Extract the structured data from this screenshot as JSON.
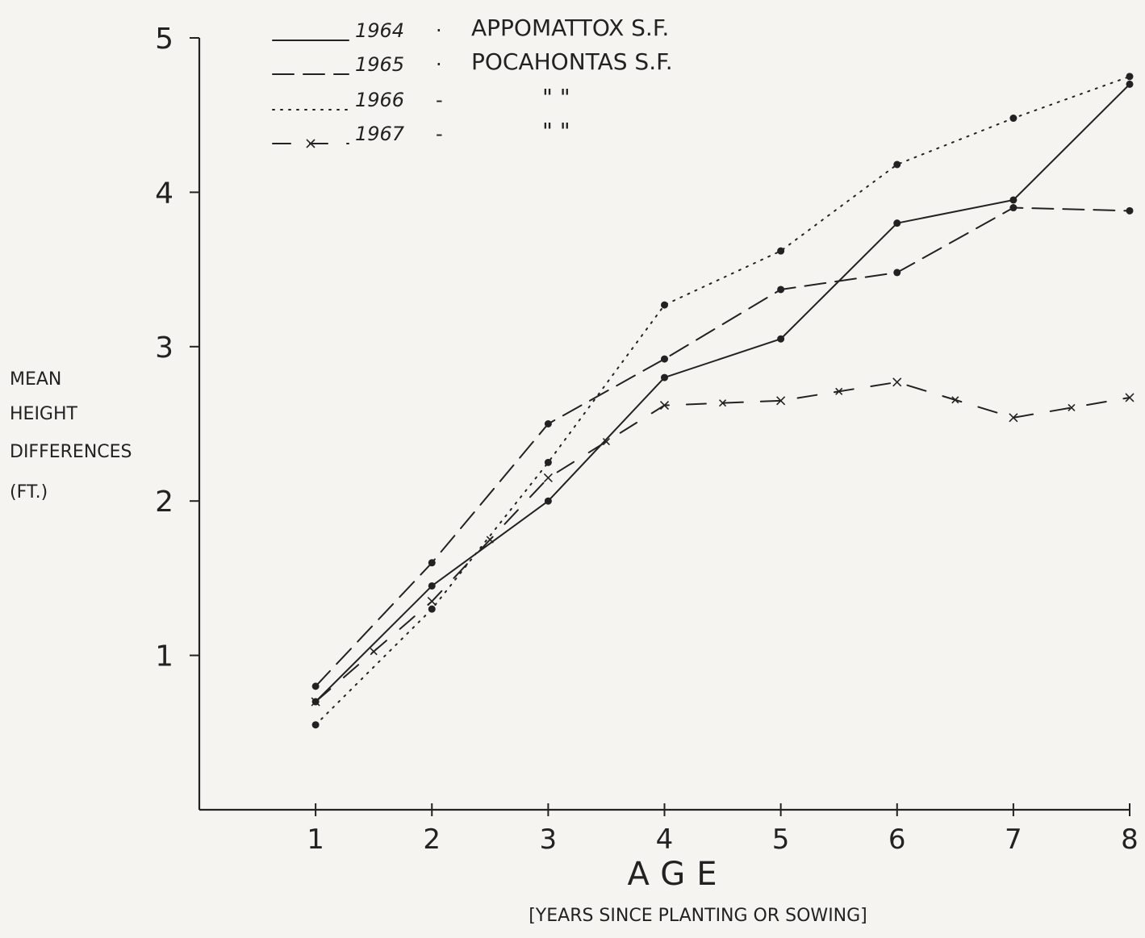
{
  "chart_data": {
    "type": "line",
    "title": "",
    "xlabel": "AGE",
    "xlabel_note": "[YEARS SINCE PLANTING OR SOWING]",
    "ylabel_lines": [
      "MEAN",
      "HEIGHT",
      "DIFFERENCES",
      "(FT.)"
    ],
    "xlim": [
      0,
      8
    ],
    "ylim": [
      0,
      5
    ],
    "x_ticks": [
      1,
      2,
      3,
      4,
      5,
      6,
      7,
      8
    ],
    "y_ticks": [
      1,
      2,
      3,
      4,
      5
    ],
    "x_tick_labels": [
      "1",
      "2",
      "3",
      "4",
      "5",
      "6",
      "7",
      "8"
    ],
    "y_tick_labels": [
      "1",
      "2",
      "3",
      "4",
      "5"
    ],
    "grid": false,
    "legend_position": "top-left",
    "series": [
      {
        "name": "1964 · APPOMATTOX S.F.",
        "legend_year": "1964",
        "legend_place": "APPOMATTOX S.F.",
        "style": "solid",
        "marker": "dot",
        "x": [
          1,
          2,
          3,
          4,
          5,
          6,
          7,
          8
        ],
        "y": [
          0.7,
          1.45,
          2.0,
          2.8,
          3.05,
          3.8,
          3.95,
          4.7
        ]
      },
      {
        "name": "1965 · POCAHONTAS S.F.",
        "legend_year": "1965",
        "legend_place": "POCAHONTAS S.F.",
        "style": "dashed",
        "marker": "dot",
        "x": [
          1,
          2,
          3,
          4,
          5,
          6,
          7,
          8
        ],
        "y": [
          0.8,
          1.6,
          2.5,
          2.92,
          3.37,
          3.48,
          3.9,
          3.88
        ]
      },
      {
        "name": "1966 · \" \"",
        "legend_year": "1966",
        "legend_place": "\"          \"",
        "style": "dotted",
        "marker": "dot",
        "x": [
          1,
          2,
          3,
          4,
          5,
          6,
          7,
          8
        ],
        "y": [
          0.55,
          1.3,
          2.25,
          3.27,
          3.62,
          4.18,
          4.48,
          4.75
        ]
      },
      {
        "name": "1967 · \" \"",
        "legend_year": "1967",
        "legend_place": "\"          \"",
        "style": "x-line",
        "marker": "x",
        "x": [
          1,
          2,
          3,
          4,
          5,
          6,
          7,
          8
        ],
        "y": [
          0.7,
          1.35,
          2.15,
          2.62,
          2.65,
          2.77,
          2.54,
          2.67
        ]
      }
    ]
  }
}
